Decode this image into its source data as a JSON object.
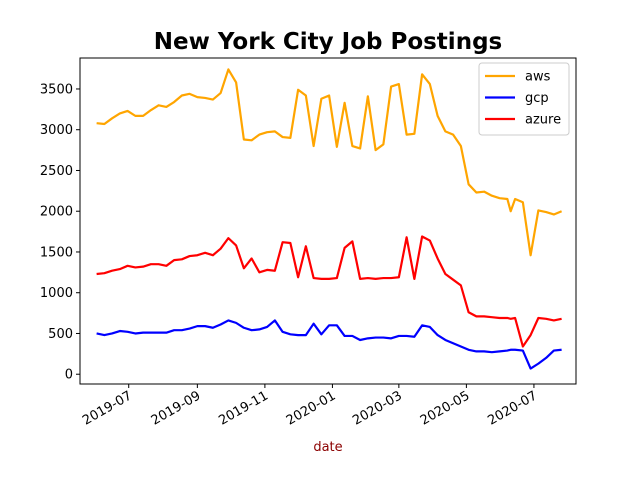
{
  "chart_data": {
    "type": "line",
    "title": "New York City Job Postings",
    "xlabel": "date",
    "ylabel": "",
    "xlim": [
      "2019-05-18",
      "2020-08-08"
    ],
    "ylim": [
      -120,
      3880
    ],
    "x_tick_labels": [
      {
        "date": "2019-07-01",
        "label": "2019-07"
      },
      {
        "date": "2019-09-01",
        "label": "2019-09"
      },
      {
        "date": "2019-11-01",
        "label": "2019-11"
      },
      {
        "date": "2020-01-01",
        "label": "2020-01"
      },
      {
        "date": "2020-03-01",
        "label": "2020-03"
      },
      {
        "date": "2020-05-01",
        "label": "2020-05"
      },
      {
        "date": "2020-07-01",
        "label": "2020-07"
      }
    ],
    "y_ticks": [
      0,
      500,
      1000,
      1500,
      2000,
      2500,
      3000,
      3500
    ],
    "grid": false,
    "legend_position": "top-right",
    "colors": {
      "xlabel": "#8b0000",
      "axis": "#000000"
    },
    "x": [
      "2019-06-02",
      "2019-06-09",
      "2019-06-16",
      "2019-06-23",
      "2019-06-30",
      "2019-07-07",
      "2019-07-14",
      "2019-07-21",
      "2019-07-28",
      "2019-08-04",
      "2019-08-11",
      "2019-08-18",
      "2019-08-25",
      "2019-09-01",
      "2019-09-08",
      "2019-09-15",
      "2019-09-22",
      "2019-09-29",
      "2019-10-06",
      "2019-10-13",
      "2019-10-20",
      "2019-10-27",
      "2019-11-03",
      "2019-11-10",
      "2019-11-17",
      "2019-11-24",
      "2019-12-01",
      "2019-12-08",
      "2019-12-15",
      "2019-12-22",
      "2019-12-29",
      "2020-01-05",
      "2020-01-12",
      "2020-01-19",
      "2020-01-26",
      "2020-02-02",
      "2020-02-09",
      "2020-02-16",
      "2020-02-23",
      "2020-03-01",
      "2020-03-08",
      "2020-03-15",
      "2020-03-22",
      "2020-03-29",
      "2020-04-05",
      "2020-04-12",
      "2020-04-19",
      "2020-04-26",
      "2020-05-03",
      "2020-05-10",
      "2020-05-17",
      "2020-05-24",
      "2020-05-31",
      "2020-06-07",
      "2020-06-10",
      "2020-06-14",
      "2020-06-21",
      "2020-06-28",
      "2020-07-05",
      "2020-07-12",
      "2020-07-19",
      "2020-07-26"
    ],
    "series": [
      {
        "name": "aws",
        "color": "#ffa500",
        "values": [
          3080,
          3070,
          3140,
          3200,
          3230,
          3170,
          3170,
          3240,
          3300,
          3280,
          3340,
          3420,
          3440,
          3400,
          3390,
          3370,
          3450,
          3740,
          3580,
          2880,
          2870,
          2940,
          2970,
          2980,
          2910,
          2900,
          3490,
          3420,
          2800,
          3380,
          3420,
          2790,
          3330,
          2800,
          2770,
          3410,
          2750,
          2820,
          3530,
          3560,
          2940,
          2950,
          3680,
          3560,
          3170,
          2980,
          2940,
          2800,
          2330,
          2230,
          2240,
          2190,
          2160,
          2150,
          2000,
          2150,
          2110,
          1460,
          2010,
          1990,
          1960,
          2000
        ]
      },
      {
        "name": "gcp",
        "color": "#0000ff",
        "values": [
          500,
          480,
          500,
          530,
          520,
          500,
          510,
          510,
          510,
          510,
          540,
          540,
          560,
          590,
          590,
          570,
          610,
          660,
          630,
          570,
          540,
          550,
          580,
          660,
          520,
          490,
          480,
          480,
          620,
          490,
          600,
          600,
          470,
          470,
          420,
          440,
          450,
          450,
          440,
          470,
          470,
          460,
          600,
          580,
          480,
          420,
          380,
          340,
          300,
          280,
          280,
          270,
          280,
          290,
          300,
          300,
          290,
          70,
          130,
          200,
          290,
          300
        ]
      },
      {
        "name": "azure",
        "color": "#ff0000",
        "values": [
          1230,
          1240,
          1270,
          1290,
          1330,
          1310,
          1320,
          1350,
          1350,
          1330,
          1400,
          1410,
          1450,
          1460,
          1490,
          1460,
          1540,
          1670,
          1580,
          1300,
          1420,
          1250,
          1280,
          1270,
          1620,
          1610,
          1190,
          1570,
          1180,
          1170,
          1170,
          1180,
          1550,
          1630,
          1170,
          1180,
          1170,
          1180,
          1180,
          1190,
          1680,
          1170,
          1690,
          1640,
          1420,
          1230,
          1160,
          1090,
          760,
          710,
          710,
          700,
          690,
          690,
          680,
          690,
          340,
          480,
          690,
          680,
          660,
          680
        ]
      }
    ]
  }
}
